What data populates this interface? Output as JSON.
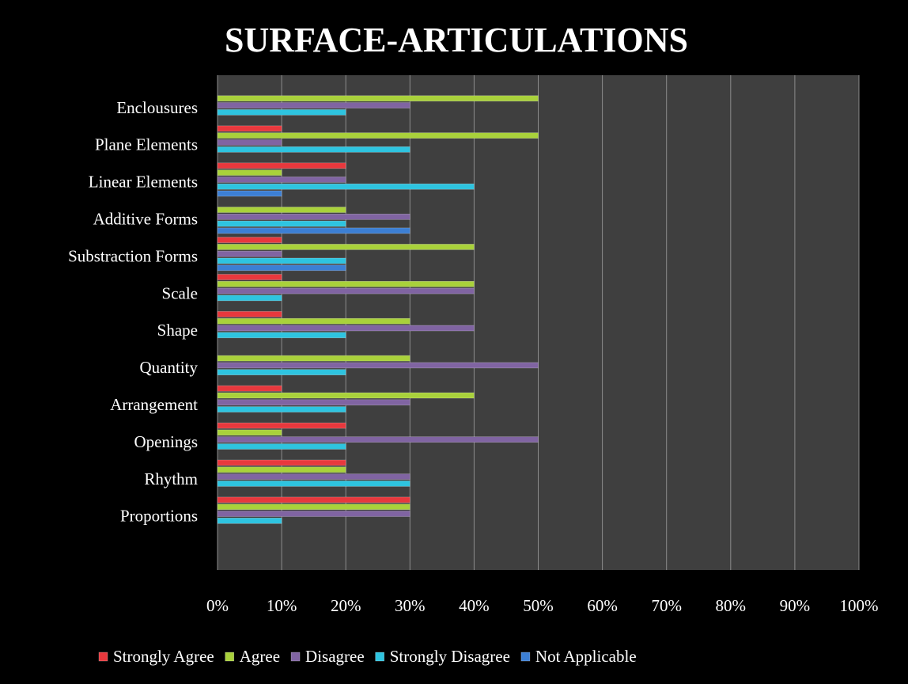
{
  "chart_data": {
    "type": "bar",
    "orientation": "horizontal",
    "title": "SURFACE-ARTICULATIONS",
    "categories": [
      "Enclousures",
      "Plane Elements",
      "Linear Elements",
      "Additive Forms",
      "Substraction  Forms",
      "Scale",
      "Shape",
      "Quantity",
      "Arrangement",
      "Openings",
      "Rhythm",
      "Proportions"
    ],
    "series": [
      {
        "name": "Strongly Agree",
        "color": "#e8383d",
        "values": [
          0,
          10,
          20,
          0,
          10,
          10,
          10,
          0,
          10,
          20,
          20,
          30
        ]
      },
      {
        "name": "Agree",
        "color": "#a9d13b",
        "values": [
          50,
          50,
          10,
          20,
          40,
          40,
          30,
          30,
          40,
          10,
          20,
          30
        ]
      },
      {
        "name": "Disagree",
        "color": "#8064a2",
        "values": [
          30,
          10,
          20,
          30,
          10,
          40,
          40,
          50,
          30,
          50,
          30,
          30
        ]
      },
      {
        "name": "Strongly Disagree",
        "color": "#2ec4e0",
        "values": [
          20,
          30,
          40,
          20,
          20,
          10,
          20,
          20,
          20,
          20,
          30,
          10
        ]
      },
      {
        "name": "Not Applicable",
        "color": "#3c7fd4",
        "values": [
          0,
          0,
          10,
          30,
          20,
          0,
          0,
          0,
          0,
          0,
          0,
          0
        ]
      }
    ],
    "xlim": [
      0,
      100
    ],
    "xticks": [
      {
        "value": 0,
        "label": "0%"
      },
      {
        "value": 10,
        "label": "10%"
      },
      {
        "value": 20,
        "label": "20%"
      },
      {
        "value": 30,
        "label": "30%"
      },
      {
        "value": 40,
        "label": "40%"
      },
      {
        "value": 50,
        "label": "50%"
      },
      {
        "value": 60,
        "label": "60%"
      },
      {
        "value": 70,
        "label": "70%"
      },
      {
        "value": 80,
        "label": "80%"
      },
      {
        "value": 90,
        "label": "90%"
      },
      {
        "value": 100,
        "label": "100%"
      }
    ],
    "grid": true,
    "legend": "bottom"
  }
}
